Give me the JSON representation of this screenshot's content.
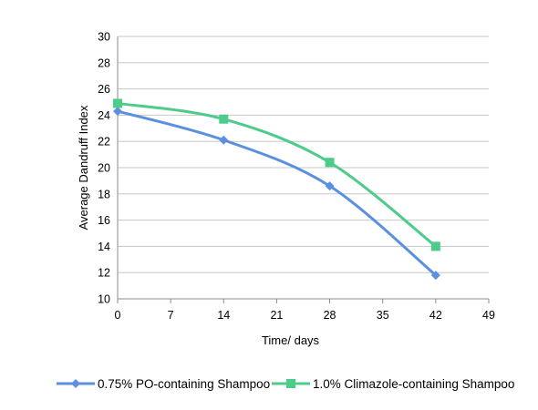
{
  "chart_data": {
    "type": "line",
    "title": "",
    "xlabel": "Time/ days",
    "ylabel": "Average Dandruff Index",
    "xlim": [
      0,
      49
    ],
    "ylim": [
      10,
      30
    ],
    "xticks": [
      0,
      7,
      14,
      21,
      28,
      35,
      42,
      49
    ],
    "yticks": [
      10,
      12,
      14,
      16,
      18,
      20,
      22,
      24,
      26,
      28,
      30
    ],
    "grid": "horizontal",
    "legend_position": "bottom",
    "series": [
      {
        "name": "0.75% PO-containing Shampoo",
        "color": "#5B8FE0",
        "marker": "diamond",
        "x": [
          0,
          14,
          28,
          42
        ],
        "y": [
          24.3,
          22.1,
          18.6,
          11.8
        ]
      },
      {
        "name": "1.0% Climazole-containing Shampoo",
        "color": "#4DCB8B",
        "marker": "square",
        "x": [
          0,
          14,
          28,
          42
        ],
        "y": [
          24.9,
          23.7,
          20.4,
          14.0
        ]
      }
    ]
  }
}
